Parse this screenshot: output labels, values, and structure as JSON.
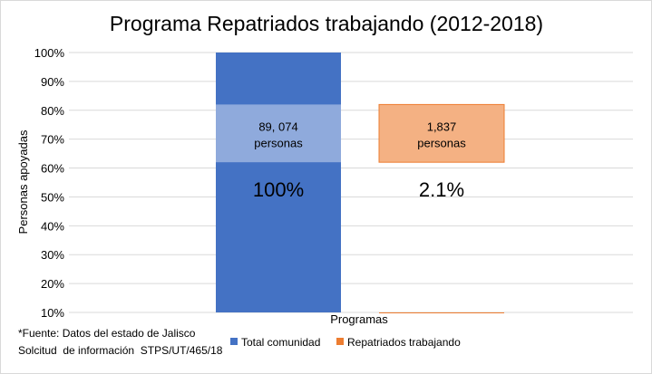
{
  "chart_data": {
    "type": "bar",
    "title": "Programa Repatriados trabajando (2012-2018)",
    "xlabel": "Programas",
    "ylabel": "Personas apoyadas",
    "ylim": [
      10,
      100
    ],
    "yticks": [
      "100%",
      "90%",
      "80%",
      "70%",
      "60%",
      "50%",
      "40%",
      "30%",
      "20%",
      "10%"
    ],
    "ytick_values": [
      100,
      90,
      80,
      70,
      60,
      50,
      40,
      30,
      20,
      10
    ],
    "grid": true,
    "legend_position": "bottom",
    "series": [
      {
        "name": "Total comunidad",
        "value": 100,
        "percent_label": "100%",
        "color": "#4472c4",
        "annotation": {
          "line1": "89, 074",
          "line2": "personas",
          "band_range": [
            62,
            82
          ],
          "fill": "#8faadc"
        }
      },
      {
        "name": "Repatriados trabajando",
        "value": 2.1,
        "percent_label": "2.1%",
        "color": "#ed7d31",
        "annotation": {
          "line1": "1,837",
          "line2": "personas",
          "band_range": [
            62,
            82
          ],
          "fill": "#f4b183",
          "stroke": "#ed7d31"
        }
      }
    ]
  },
  "footnote": {
    "line1": "*Fuente: Datos del estado de Jalisco",
    "line2": "Solcitud  de información  STPS/UT/465/18"
  }
}
